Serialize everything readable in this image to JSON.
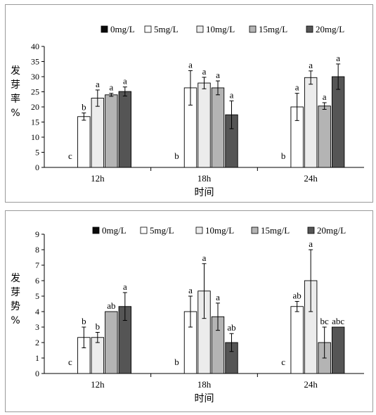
{
  "legend": [
    {
      "label": "0mg/L",
      "color": "#0a0a0a"
    },
    {
      "label": "5mg/L",
      "color": "#ffffff"
    },
    {
      "label": "10mg/L",
      "color": "#ececec"
    },
    {
      "label": "15mg/L",
      "color": "#b4b4b4"
    },
    {
      "label": "20mg/L",
      "color": "#555555"
    }
  ],
  "chart_data": [
    {
      "type": "bar",
      "title": "",
      "ylabel": "发芽率%",
      "ylabel_chars": [
        "发",
        "芽",
        "率",
        "%"
      ],
      "xlabel": "时间",
      "categories": [
        "12h",
        "18h",
        "24h"
      ],
      "ylim": [
        0,
        40
      ],
      "yticks": [
        0,
        5,
        10,
        15,
        20,
        25,
        30,
        35,
        40
      ],
      "grid": false,
      "legend_position": "top-right",
      "series": [
        {
          "name": "0mg/L",
          "values": [
            0,
            0,
            0
          ],
          "errors": [
            0,
            0,
            0
          ],
          "letters": [
            "c",
            "b",
            "b"
          ]
        },
        {
          "name": "5mg/L",
          "values": [
            16.8,
            26.3,
            20
          ],
          "errors": [
            1.2,
            5.7,
            4.5
          ],
          "letters": [
            "b",
            "a",
            "a"
          ]
        },
        {
          "name": "10mg/L",
          "values": [
            22.9,
            27.9,
            29.7
          ],
          "errors": [
            2.7,
            1.9,
            2.2
          ],
          "letters": [
            "a",
            "a",
            "a"
          ]
        },
        {
          "name": "15mg/L",
          "values": [
            24,
            26.3,
            20.3
          ],
          "errors": [
            0.5,
            2.3,
            1.1
          ],
          "letters": [
            "a",
            "a",
            "a"
          ]
        },
        {
          "name": "20mg/L",
          "values": [
            25.1,
            17.4,
            30
          ],
          "errors": [
            1.5,
            4.6,
            4.2
          ],
          "letters": [
            "a",
            "a",
            "a"
          ]
        }
      ]
    },
    {
      "type": "bar",
      "title": "",
      "ylabel": "发芽势%",
      "ylabel_chars": [
        "发",
        "芽",
        "势",
        "%"
      ],
      "xlabel": "时间",
      "categories": [
        "12h",
        "18h",
        "24h"
      ],
      "ylim": [
        0,
        9
      ],
      "yticks": [
        0,
        1,
        2,
        3,
        4,
        5,
        6,
        7,
        8,
        9
      ],
      "grid": false,
      "legend_position": "top-right",
      "series": [
        {
          "name": "0mg/L",
          "values": [
            0,
            0,
            0
          ],
          "errors": [
            0,
            0,
            0
          ],
          "letters": [
            "c",
            "b",
            "c"
          ]
        },
        {
          "name": "5mg/L",
          "values": [
            2.33,
            4,
            4.33
          ],
          "errors": [
            0.67,
            1,
            0.33
          ],
          "letters": [
            "b",
            "a",
            "ab"
          ]
        },
        {
          "name": "10mg/L",
          "values": [
            2.33,
            5.33,
            6
          ],
          "errors": [
            0.33,
            1.77,
            2
          ],
          "letters": [
            "b",
            "a",
            "a"
          ]
        },
        {
          "name": "15mg/L",
          "values": [
            4,
            3.67,
            2
          ],
          "errors": [
            0,
            0.88,
            1
          ],
          "letters": [
            "ab",
            "a",
            "bc"
          ]
        },
        {
          "name": "20mg/L",
          "values": [
            4.33,
            2,
            3
          ],
          "errors": [
            0.9,
            0.58,
            0
          ],
          "letters": [
            "a",
            "ab",
            "abc"
          ]
        }
      ]
    }
  ]
}
